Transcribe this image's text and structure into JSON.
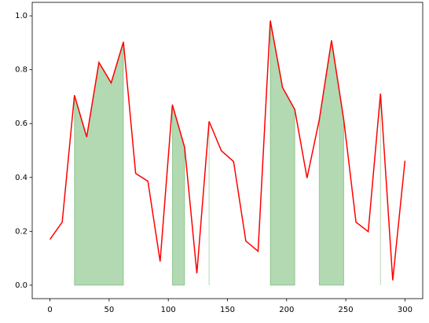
{
  "chart_data": {
    "type": "line",
    "x": [
      0,
      10.34,
      20.69,
      31.03,
      41.38,
      51.72,
      62.07,
      72.41,
      82.76,
      93.1,
      103.45,
      113.79,
      124.14,
      134.48,
      144.83,
      155.17,
      165.52,
      175.86,
      186.21,
      196.55,
      206.9,
      217.24,
      227.59,
      237.93,
      248.28,
      258.62,
      268.97,
      279.31,
      289.66,
      300
    ],
    "series": [
      {
        "color": "#ff0000",
        "values": [
          0.17,
          0.234,
          0.705,
          0.55,
          0.827,
          0.751,
          0.903,
          0.415,
          0.386,
          0.088,
          0.67,
          0.512,
          0.044,
          0.608,
          0.499,
          0.459,
          0.164,
          0.126,
          0.982,
          0.734,
          0.652,
          0.398,
          0.614,
          0.909,
          0.614,
          0.234,
          0.199,
          0.711,
          0.018,
          0.462
        ]
      }
    ],
    "fill_color": "#008000",
    "fill_threshold": 0.5,
    "xlim": [
      -15,
      315
    ],
    "xticks": [
      0,
      50,
      100,
      150,
      200,
      250,
      300
    ],
    "ylim": [
      -0.05,
      1.05
    ],
    "yticks": [
      {
        "value": 0,
        "label": "0.0"
      },
      0.2,
      0.4,
      0.6,
      0.8,
      {
        "value": 1,
        "label": "1.0"
      }
    ]
  }
}
